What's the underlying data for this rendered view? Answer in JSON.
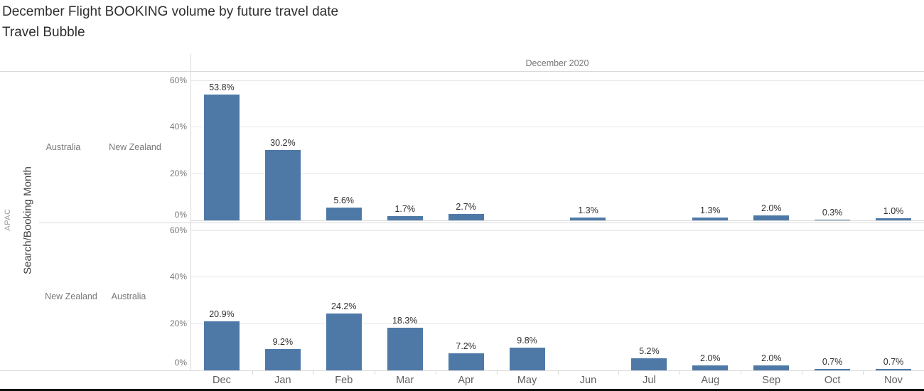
{
  "title": {
    "line1": "December Flight BOOKING volume by future travel date",
    "line2": "Travel Bubble"
  },
  "row_axis": {
    "field_label": "Search/Booking Month",
    "region_label": "APAC"
  },
  "colors": {
    "bar": "#4e79a7",
    "gridline": "#e8e8e8",
    "border": "#d9d9d9"
  },
  "chart_data": {
    "type": "bar",
    "title": "December Flight BOOKING volume by future travel date",
    "subtitle": "Travel Bubble",
    "column_header": "December 2020",
    "categories": [
      "Dec",
      "Jan",
      "Feb",
      "Mar",
      "Apr",
      "May",
      "Jun",
      "Jul",
      "Aug",
      "Sep",
      "Oct",
      "Nov"
    ],
    "y_ticks": [
      {
        "value": 0,
        "label": "0%"
      },
      {
        "value": 20,
        "label": "20%"
      },
      {
        "value": 40,
        "label": "40%"
      },
      {
        "value": 60,
        "label": "60%"
      }
    ],
    "ylim": [
      0,
      60
    ],
    "grid": true,
    "value_label_suffix": "%",
    "legend_position": "none",
    "panels": [
      {
        "origin": "Australia",
        "destination": "New Zealand",
        "values": [
          53.8,
          30.2,
          5.6,
          1.7,
          2.7,
          null,
          1.3,
          null,
          1.3,
          2.0,
          0.3,
          1.0
        ]
      },
      {
        "origin": "New Zealand",
        "destination": "Australia",
        "values": [
          20.9,
          9.2,
          24.2,
          18.3,
          7.2,
          9.8,
          null,
          5.2,
          2.0,
          2.0,
          0.7,
          0.7
        ]
      }
    ]
  }
}
